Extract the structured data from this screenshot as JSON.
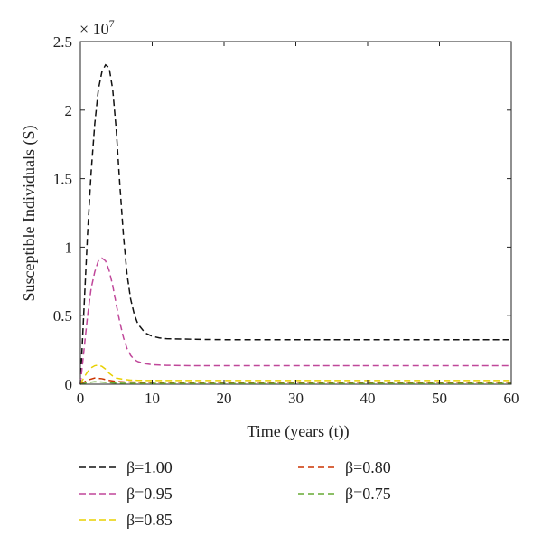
{
  "chart_data": {
    "type": "line",
    "title": "",
    "xlabel": "Time (years (t))",
    "ylabel": "Susceptible Individuals (S)",
    "y_multiplier": "× 10",
    "y_exponent": "7",
    "xlim": [
      0,
      60
    ],
    "ylim": [
      0,
      2.5
    ],
    "x_ticks": [
      "0",
      "10",
      "20",
      "30",
      "40",
      "50",
      "60"
    ],
    "y_ticks": [
      "0",
      "0.5",
      "1",
      "1.5",
      "2",
      "2.5"
    ],
    "grid": false,
    "legend_position": "bottom",
    "series": [
      {
        "name": "β=1.00",
        "color": "#111111",
        "x": [
          0,
          0.5,
          1,
          1.5,
          2,
          2.5,
          3,
          3.5,
          4,
          4.5,
          5,
          5.5,
          6,
          6.5,
          7,
          7.5,
          8,
          9,
          10,
          11,
          12,
          14,
          17,
          20,
          30,
          40,
          50,
          60
        ],
        "y": [
          0,
          0.55,
          1.1,
          1.55,
          1.9,
          2.15,
          2.28,
          2.33,
          2.31,
          2.15,
          1.85,
          1.45,
          1.08,
          0.8,
          0.62,
          0.51,
          0.44,
          0.375,
          0.35,
          0.338,
          0.332,
          0.33,
          0.327,
          0.325,
          0.325,
          0.325,
          0.325,
          0.325
        ]
      },
      {
        "name": "β=0.95",
        "color": "#c0479a",
        "x": [
          0,
          0.5,
          1,
          1.5,
          2,
          2.5,
          3,
          3.5,
          4,
          4.5,
          5,
          5.5,
          6,
          6.5,
          7,
          7.5,
          8,
          9,
          10,
          11,
          12,
          14,
          17,
          20,
          30,
          40,
          50,
          60
        ],
        "y": [
          0,
          0.25,
          0.5,
          0.7,
          0.82,
          0.9,
          0.92,
          0.9,
          0.83,
          0.72,
          0.58,
          0.45,
          0.34,
          0.26,
          0.21,
          0.18,
          0.165,
          0.15,
          0.143,
          0.14,
          0.138,
          0.136,
          0.135,
          0.135,
          0.135,
          0.135,
          0.135,
          0.135
        ]
      },
      {
        "name": "β=0.85",
        "color": "#e8d000",
        "x": [
          0,
          0.5,
          1,
          1.5,
          2,
          2.5,
          3,
          3.5,
          4,
          4.5,
          5,
          6,
          7,
          8,
          10,
          12,
          15,
          20,
          30,
          40,
          50,
          60
        ],
        "y": [
          0,
          0.05,
          0.09,
          0.12,
          0.135,
          0.14,
          0.13,
          0.11,
          0.08,
          0.06,
          0.045,
          0.035,
          0.03,
          0.028,
          0.027,
          0.027,
          0.027,
          0.027,
          0.027,
          0.027,
          0.027,
          0.027
        ]
      },
      {
        "name": "β=0.80",
        "color": "#cc3300",
        "x": [
          0,
          1,
          2,
          3,
          4,
          5,
          6,
          8,
          10,
          15,
          20,
          30,
          40,
          50,
          60
        ],
        "y": [
          0,
          0.03,
          0.045,
          0.04,
          0.028,
          0.02,
          0.017,
          0.015,
          0.015,
          0.015,
          0.015,
          0.015,
          0.015,
          0.015,
          0.015
        ]
      },
      {
        "name": "β=0.75",
        "color": "#66aa33",
        "x": [
          0,
          1,
          2,
          3,
          4,
          5,
          6,
          8,
          10,
          15,
          20,
          30,
          40,
          50,
          60
        ],
        "y": [
          0,
          0.012,
          0.018,
          0.016,
          0.011,
          0.008,
          0.007,
          0.006,
          0.006,
          0.006,
          0.006,
          0.006,
          0.006,
          0.006,
          0.006
        ]
      }
    ]
  }
}
